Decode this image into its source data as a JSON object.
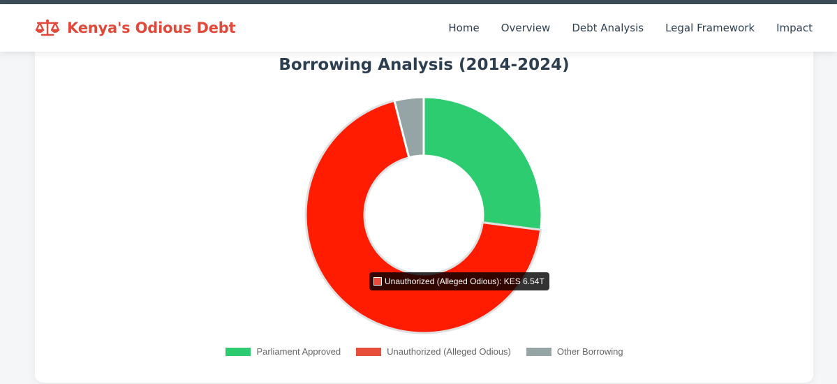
{
  "header": {
    "brand": "Kenya's Odious Debt",
    "brand_icon": "balance-scale-icon",
    "brand_color": "#e1493a",
    "nav": [
      "Home",
      "Overview",
      "Debt Analysis",
      "Legal Framework",
      "Impact"
    ]
  },
  "chart_data": {
    "type": "pie",
    "variant": "doughnut",
    "title": "Borrowing Analysis (2014-2024)",
    "categories": [
      "Parliament Approved",
      "Unauthorized (Alleged Odious)",
      "Other Borrowing"
    ],
    "shares_percent": [
      27,
      69,
      4
    ],
    "colors": [
      "#2ecc71",
      "#e74c3c",
      "#95a5a6"
    ],
    "highlight_color": "#ff1c00",
    "legend_position": "bottom",
    "tooltip": {
      "category": "Unauthorized (Alleged Odious)",
      "text": "Unauthorized (Alleged Odious): KES 6.54T"
    }
  }
}
